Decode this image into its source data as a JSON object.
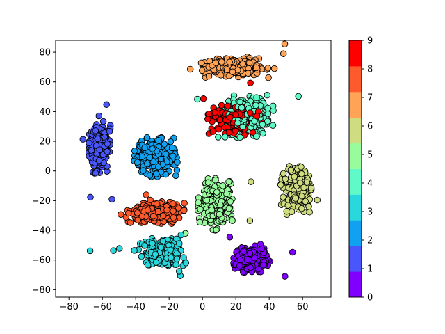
{
  "chart_data": {
    "type": "scatter",
    "title": "",
    "xlabel": "",
    "ylabel": "",
    "xlim": [
      -88,
      77
    ],
    "ylim": [
      -85,
      88
    ],
    "grid": false,
    "x_ticks": [
      -80,
      -60,
      -40,
      -20,
      0,
      20,
      40,
      60
    ],
    "y_ticks": [
      -80,
      -60,
      -40,
      -20,
      0,
      20,
      40,
      60,
      80
    ],
    "colorbar": {
      "ticks": [
        0,
        1,
        2,
        3,
        4,
        5,
        6,
        7,
        8,
        9
      ],
      "colors": [
        "#8000ff",
        "#4856fb",
        "#10a2f0",
        "#28d8dc",
        "#60f9c8",
        "#98fc9d",
        "#d0dc80",
        "#ffa357",
        "#ff5a2c",
        "#ff0000"
      ],
      "placement": "right"
    },
    "marker": {
      "shape": "circle",
      "edgecolor": "#000000"
    },
    "clusters": [
      {
        "label": 0,
        "center": [
          30,
          -60
        ],
        "spread": [
          10,
          7
        ],
        "count": 230
      },
      {
        "label": 1,
        "center": [
          -62,
          15
        ],
        "spread": [
          6,
          14
        ],
        "count": 200
      },
      {
        "label": 2,
        "center": [
          -28,
          10
        ],
        "spread": [
          11,
          12
        ],
        "count": 240
      },
      {
        "label": 3,
        "center": [
          -24,
          -55
        ],
        "spread": [
          12,
          8
        ],
        "count": 240
      },
      {
        "label": 4,
        "center": [
          28,
          37
        ],
        "spread": [
          12,
          12
        ],
        "count": 220
      },
      {
        "label": 5,
        "center": [
          8,
          -22
        ],
        "spread": [
          9,
          15
        ],
        "count": 230
      },
      {
        "label": 6,
        "center": [
          56,
          -12
        ],
        "spread": [
          8,
          13
        ],
        "count": 230
      },
      {
        "label": 7,
        "center": [
          18,
          70
        ],
        "spread": [
          18,
          6
        ],
        "count": 210
      },
      {
        "label": 8,
        "center": [
          -28,
          -28
        ],
        "spread": [
          15,
          7
        ],
        "count": 230
      },
      {
        "label": 9,
        "center": [
          20,
          35
        ],
        "spread": [
          14,
          9
        ],
        "count": 200
      }
    ]
  }
}
